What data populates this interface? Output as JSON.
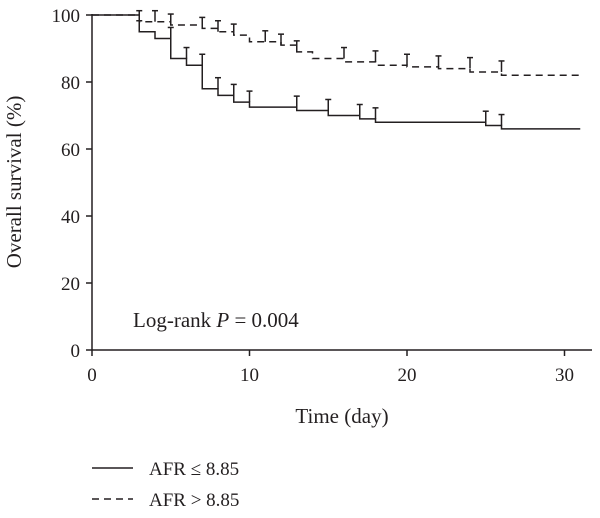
{
  "chart_data": {
    "type": "line",
    "step": true,
    "xlabel": "Time (day)",
    "ylabel": "Overall survival (%)",
    "xlim": [
      0,
      32
    ],
    "ylim": [
      0,
      100
    ],
    "xticks": [
      0,
      10,
      20,
      30
    ],
    "yticks": [
      0,
      20,
      40,
      60,
      80,
      100
    ],
    "grid": false,
    "legend_position": "bottom-left",
    "annotation": {
      "prefix": "Log-rank ",
      "italic": "P",
      "suffix": " = 0.004"
    },
    "series": [
      {
        "name": "AFR ≤ 8.85",
        "line_style": "solid",
        "color": "#231f20",
        "steps": [
          [
            0,
            100
          ],
          [
            3,
            100
          ],
          [
            3,
            95
          ],
          [
            4,
            95
          ],
          [
            4,
            93
          ],
          [
            5,
            93
          ],
          [
            5,
            87
          ],
          [
            6,
            87
          ],
          [
            6,
            85
          ],
          [
            7,
            85
          ],
          [
            7,
            78
          ],
          [
            8,
            78
          ],
          [
            8,
            76
          ],
          [
            9,
            76
          ],
          [
            9,
            74
          ],
          [
            10,
            74
          ],
          [
            10,
            72.5
          ],
          [
            13,
            72.5
          ],
          [
            13,
            71.5
          ],
          [
            15,
            71.5
          ],
          [
            15,
            70
          ],
          [
            17,
            70
          ],
          [
            17,
            69
          ],
          [
            18,
            69
          ],
          [
            18,
            68
          ],
          [
            25,
            68
          ],
          [
            25,
            67
          ],
          [
            26,
            67
          ],
          [
            26,
            66
          ],
          [
            31,
            66
          ]
        ],
        "censor": [
          [
            3,
            95
          ],
          [
            5,
            93
          ],
          [
            6,
            87
          ],
          [
            7,
            85
          ],
          [
            8,
            78
          ],
          [
            9,
            76
          ],
          [
            10,
            74
          ],
          [
            13,
            72.5
          ],
          [
            15,
            71.5
          ],
          [
            17,
            70
          ],
          [
            18,
            69
          ],
          [
            25,
            68
          ],
          [
            26,
            67
          ]
        ]
      },
      {
        "name": "AFR > 8.85",
        "line_style": "dashed",
        "color": "#231f20",
        "steps": [
          [
            0,
            100
          ],
          [
            3,
            100
          ],
          [
            3,
            98
          ],
          [
            5,
            98
          ],
          [
            5,
            97
          ],
          [
            7,
            97
          ],
          [
            7,
            96
          ],
          [
            8,
            96
          ],
          [
            8,
            95
          ],
          [
            9,
            95
          ],
          [
            9,
            94
          ],
          [
            10,
            94
          ],
          [
            10,
            92
          ],
          [
            12,
            92
          ],
          [
            12,
            91
          ],
          [
            13,
            91
          ],
          [
            13,
            89
          ],
          [
            14,
            89
          ],
          [
            14,
            87
          ],
          [
            16,
            87
          ],
          [
            16,
            86
          ],
          [
            18,
            86
          ],
          [
            18,
            85
          ],
          [
            20,
            85
          ],
          [
            20,
            84.5
          ],
          [
            22,
            84.5
          ],
          [
            22,
            84
          ],
          [
            24,
            84
          ],
          [
            24,
            83
          ],
          [
            26,
            83
          ],
          [
            26,
            82
          ],
          [
            31,
            82
          ]
        ],
        "censor": [
          [
            3,
            98
          ],
          [
            4,
            98
          ],
          [
            5,
            97
          ],
          [
            7,
            96
          ],
          [
            8,
            95
          ],
          [
            9,
            94
          ],
          [
            11,
            92
          ],
          [
            12,
            91
          ],
          [
            13,
            89
          ],
          [
            16,
            87
          ],
          [
            18,
            86
          ],
          [
            20,
            85
          ],
          [
            22,
            84.5
          ],
          [
            24,
            84
          ],
          [
            26,
            83
          ]
        ]
      }
    ]
  }
}
